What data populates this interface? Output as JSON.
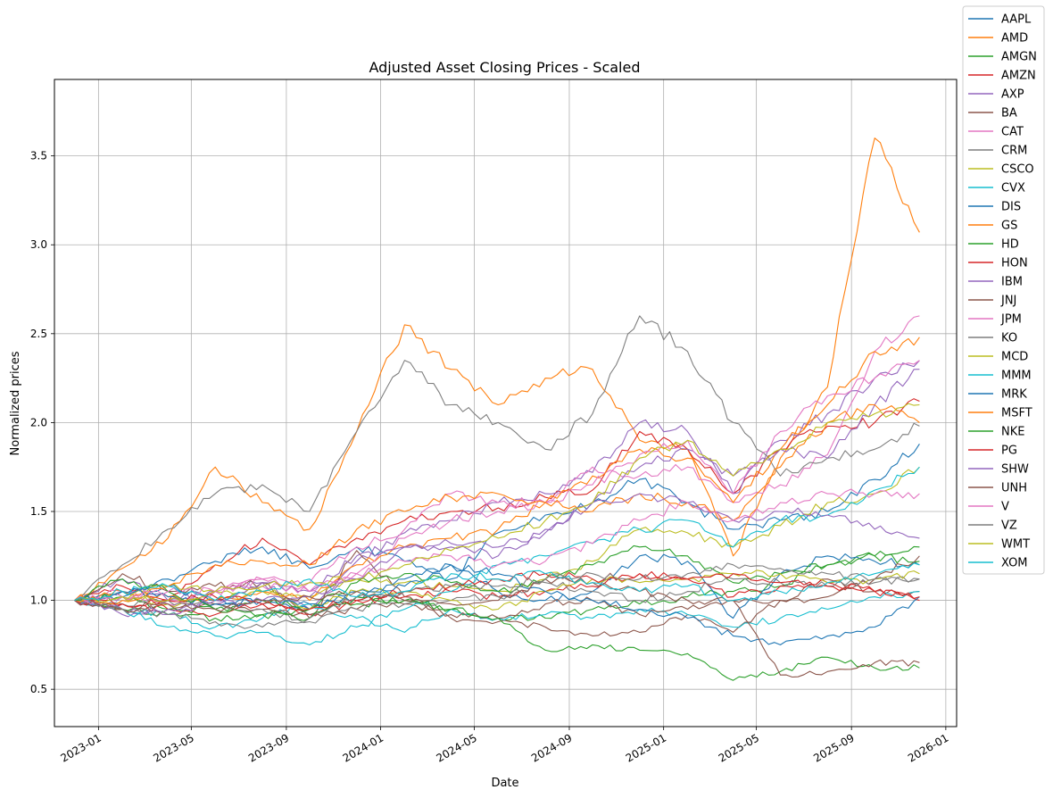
{
  "chart_data": {
    "type": "line",
    "title": "Adjusted Asset Closing Prices - Scaled",
    "xlabel": "Date",
    "ylabel": "Normalized prices",
    "grid": true,
    "legend_position": "outside-top-right",
    "xlim": [
      "2022-11-05",
      "2026-01-15"
    ],
    "ylim": [
      0.29,
      3.93
    ],
    "x_ticks": [
      "2023-01",
      "2023-05",
      "2023-09",
      "2024-01",
      "2024-05",
      "2024-09",
      "2025-01",
      "2025-05",
      "2025-09",
      "2026-01"
    ],
    "y_ticks": [
      0.5,
      1.0,
      1.5,
      2.0,
      2.5,
      3.0,
      3.5
    ],
    "y_tick_labels": [
      "0.5",
      "1.0",
      "1.5",
      "2.0",
      "2.5",
      "3.0",
      "3.5"
    ],
    "x": [
      "2022-12-01",
      "2023-02-01",
      "2023-04-01",
      "2023-06-01",
      "2023-08-01",
      "2023-10-01",
      "2023-12-01",
      "2024-02-01",
      "2024-04-01",
      "2024-06-01",
      "2024-08-01",
      "2024-10-01",
      "2024-12-01",
      "2025-02-01",
      "2025-04-01",
      "2025-06-01",
      "2025-08-01",
      "2025-10-01",
      "2025-11-28"
    ],
    "series": [
      {
        "name": "AAPL",
        "color": "#1f77b4",
        "values": [
          1.0,
          1.02,
          1.12,
          1.22,
          1.3,
          1.18,
          1.3,
          1.22,
          1.12,
          1.38,
          1.48,
          1.55,
          1.68,
          1.55,
          1.4,
          1.45,
          1.5,
          1.68,
          1.88
        ]
      },
      {
        "name": "AMD",
        "color": "#ff7f0e",
        "values": [
          1.0,
          1.18,
          1.35,
          1.75,
          1.55,
          1.4,
          1.95,
          2.55,
          2.3,
          2.1,
          2.25,
          2.3,
          1.9,
          1.85,
          1.25,
          1.8,
          2.2,
          3.6,
          3.07
        ]
      },
      {
        "name": "AMGN",
        "color": "#2ca02c",
        "values": [
          1.0,
          0.95,
          0.92,
          0.9,
          0.92,
          0.95,
          0.98,
          1.0,
          0.95,
          0.9,
          0.9,
          0.95,
          0.98,
          1.02,
          1.05,
          1.08,
          1.2,
          1.25,
          1.3
        ]
      },
      {
        "name": "AMZN",
        "color": "#d62728",
        "values": [
          1.0,
          1.08,
          1.0,
          1.2,
          1.35,
          1.2,
          1.35,
          1.45,
          1.5,
          1.52,
          1.58,
          1.62,
          1.95,
          1.85,
          1.6,
          1.85,
          1.98,
          2.0,
          2.12
        ]
      },
      {
        "name": "AXP",
        "color": "#9467bd",
        "values": [
          1.0,
          1.12,
          1.0,
          1.05,
          1.1,
          0.95,
          1.22,
          1.38,
          1.45,
          1.55,
          1.6,
          1.72,
          2.0,
          1.95,
          1.6,
          1.9,
          2.05,
          2.25,
          2.35
        ]
      },
      {
        "name": "BA",
        "color": "#8c564b",
        "values": [
          1.0,
          1.15,
          1.05,
          1.08,
          1.1,
          0.9,
          1.28,
          1.02,
          0.9,
          0.88,
          0.85,
          0.8,
          0.82,
          0.92,
          0.82,
          1.0,
          1.12,
          1.05,
          1.05
        ]
      },
      {
        "name": "CAT",
        "color": "#e377c2",
        "values": [
          1.0,
          1.05,
          1.0,
          1.05,
          1.12,
          1.1,
          1.3,
          1.4,
          1.6,
          1.55,
          1.55,
          1.75,
          1.7,
          1.75,
          1.55,
          1.65,
          1.82,
          2.4,
          2.6
        ]
      },
      {
        "name": "CRM",
        "color": "#7f7f7f",
        "values": [
          1.0,
          1.2,
          1.4,
          1.6,
          1.65,
          1.5,
          1.95,
          2.35,
          2.1,
          2.0,
          1.85,
          2.05,
          2.6,
          2.4,
          2.0,
          1.7,
          1.8,
          1.85,
          1.98
        ]
      },
      {
        "name": "CSCO",
        "color": "#bcbd22",
        "values": [
          1.0,
          1.02,
          0.98,
          1.0,
          1.05,
          1.02,
          1.12,
          1.1,
          1.08,
          1.05,
          1.12,
          1.22,
          1.4,
          1.38,
          1.3,
          1.42,
          1.55,
          1.6,
          1.75
        ]
      },
      {
        "name": "CVX",
        "color": "#17becf",
        "values": [
          1.0,
          0.95,
          0.92,
          0.85,
          0.9,
          0.98,
          0.9,
          0.82,
          0.95,
          0.9,
          0.92,
          0.9,
          0.95,
          0.92,
          0.85,
          0.9,
          0.95,
          1.02,
          1.05
        ]
      },
      {
        "name": "DIS",
        "color": "#1f77b4",
        "values": [
          1.0,
          1.05,
          1.08,
          1.0,
          0.98,
          0.95,
          1.05,
          1.08,
          1.2,
          1.05,
          1.0,
          1.05,
          1.25,
          1.22,
          0.9,
          1.15,
          1.25,
          1.22,
          1.2
        ]
      },
      {
        "name": "GS",
        "color": "#ff7f0e",
        "values": [
          1.0,
          1.05,
          1.02,
          1.0,
          1.05,
          1.0,
          1.2,
          1.3,
          1.35,
          1.4,
          1.55,
          1.7,
          1.85,
          1.8,
          1.55,
          1.85,
          2.1,
          2.4,
          2.48
        ]
      },
      {
        "name": "HD",
        "color": "#2ca02c",
        "values": [
          1.0,
          1.02,
          0.95,
          0.95,
          1.0,
          0.95,
          1.1,
          1.15,
          1.1,
          1.05,
          1.12,
          1.2,
          1.3,
          1.25,
          1.1,
          1.15,
          1.2,
          1.25,
          1.22
        ]
      },
      {
        "name": "HON",
        "color": "#d62728",
        "values": [
          1.0,
          0.98,
          0.95,
          0.92,
          0.98,
          0.92,
          1.0,
          1.02,
          1.05,
          1.02,
          1.05,
          1.08,
          1.15,
          1.12,
          1.02,
          1.08,
          1.1,
          1.05,
          1.0
        ]
      },
      {
        "name": "IBM",
        "color": "#9467bd",
        "values": [
          1.0,
          0.92,
          0.92,
          0.98,
          1.0,
          1.02,
          1.12,
          1.3,
          1.32,
          1.3,
          1.38,
          1.55,
          1.75,
          1.85,
          1.7,
          1.85,
          1.8,
          2.1,
          2.3
        ]
      },
      {
        "name": "JNJ",
        "color": "#8c564b",
        "values": [
          1.0,
          0.95,
          0.95,
          0.98,
          0.95,
          0.92,
          0.95,
          0.98,
          0.92,
          0.9,
          0.98,
          1.0,
          0.92,
          0.95,
          1.0,
          1.0,
          1.02,
          1.12,
          1.25
        ]
      },
      {
        "name": "JPM",
        "color": "#e377c2",
        "values": [
          1.0,
          1.02,
          0.98,
          1.05,
          1.12,
          1.05,
          1.15,
          1.35,
          1.45,
          1.5,
          1.55,
          1.65,
          1.82,
          1.9,
          1.6,
          1.95,
          2.15,
          2.25,
          2.35
        ]
      },
      {
        "name": "KO",
        "color": "#7f7f7f",
        "values": [
          1.0,
          0.98,
          1.0,
          0.98,
          0.95,
          0.88,
          0.95,
          0.98,
          1.0,
          1.02,
          1.1,
          1.05,
          1.0,
          1.05,
          1.12,
          1.1,
          1.08,
          1.1,
          1.12
        ]
      },
      {
        "name": "MCD",
        "color": "#bcbd22",
        "values": [
          1.0,
          1.02,
          1.08,
          1.05,
          1.05,
          0.95,
          1.05,
          1.05,
          1.0,
          0.95,
          1.05,
          1.12,
          1.1,
          1.12,
          1.15,
          1.15,
          1.1,
          1.12,
          1.15
        ]
      },
      {
        "name": "MMM",
        "color": "#17becf",
        "values": [
          1.0,
          0.95,
          0.85,
          0.8,
          0.82,
          0.75,
          0.85,
          0.95,
          1.05,
          1.2,
          1.25,
          1.32,
          1.4,
          1.45,
          1.3,
          1.45,
          1.48,
          1.62,
          1.75
        ]
      },
      {
        "name": "MRK",
        "color": "#1f77b4",
        "values": [
          1.0,
          1.05,
          1.02,
          0.98,
          1.0,
          0.98,
          1.02,
          1.12,
          1.2,
          1.15,
          1.05,
          1.0,
          0.95,
          0.9,
          0.8,
          0.75,
          0.8,
          0.85,
          1.02
        ]
      },
      {
        "name": "MSFT",
        "color": "#ff7f0e",
        "values": [
          1.0,
          1.0,
          1.08,
          1.2,
          1.22,
          1.2,
          1.4,
          1.5,
          1.58,
          1.6,
          1.55,
          1.5,
          1.6,
          1.55,
          1.45,
          1.75,
          2.0,
          2.1,
          2.0
        ]
      },
      {
        "name": "NKE",
        "color": "#2ca02c",
        "values": [
          1.0,
          1.12,
          1.05,
          0.95,
          0.92,
          0.9,
          1.02,
          1.0,
          0.95,
          0.9,
          0.72,
          0.75,
          0.72,
          0.7,
          0.55,
          0.6,
          0.68,
          0.62,
          0.62
        ]
      },
      {
        "name": "PG",
        "color": "#d62728",
        "values": [
          1.0,
          0.98,
          1.0,
          1.02,
          0.98,
          0.95,
          1.0,
          1.05,
          1.08,
          1.12,
          1.15,
          1.12,
          1.15,
          1.12,
          1.15,
          1.1,
          1.08,
          1.05,
          1.02
        ]
      },
      {
        "name": "SHW",
        "color": "#9467bd",
        "values": [
          1.0,
          0.95,
          0.95,
          1.0,
          1.1,
          1.05,
          1.25,
          1.3,
          1.3,
          1.25,
          1.4,
          1.55,
          1.6,
          1.55,
          1.45,
          1.5,
          1.48,
          1.4,
          1.35
        ]
      },
      {
        "name": "UNH",
        "color": "#8c564b",
        "values": [
          1.0,
          0.95,
          0.98,
          0.95,
          1.0,
          1.02,
          1.05,
          1.0,
          0.98,
          1.0,
          1.12,
          1.1,
          1.05,
          1.0,
          1.0,
          0.58,
          0.6,
          0.65,
          0.65
        ]
      },
      {
        "name": "V",
        "color": "#e377c2",
        "values": [
          1.0,
          1.02,
          1.05,
          1.05,
          1.08,
          1.05,
          1.15,
          1.22,
          1.25,
          1.2,
          1.22,
          1.32,
          1.45,
          1.55,
          1.45,
          1.55,
          1.6,
          1.6,
          1.6
        ]
      },
      {
        "name": "VZ",
        "color": "#7f7f7f",
        "values": [
          1.0,
          0.95,
          0.92,
          0.88,
          0.85,
          0.9,
          1.02,
          1.05,
          1.08,
          1.08,
          1.12,
          1.15,
          1.12,
          1.15,
          1.2,
          1.18,
          1.15,
          1.12,
          1.12
        ]
      },
      {
        "name": "WMT",
        "color": "#bcbd22",
        "values": [
          1.0,
          1.02,
          1.0,
          1.05,
          1.08,
          1.1,
          1.12,
          1.2,
          1.28,
          1.35,
          1.45,
          1.55,
          1.8,
          1.9,
          1.7,
          1.85,
          2.0,
          2.05,
          2.1
        ]
      },
      {
        "name": "XOM",
        "color": "#17becf",
        "values": [
          1.0,
          1.05,
          1.08,
          1.0,
          1.05,
          1.12,
          1.02,
          1.05,
          1.15,
          1.12,
          1.15,
          1.1,
          1.05,
          1.08,
          1.0,
          1.05,
          1.1,
          1.15,
          1.2
        ]
      }
    ]
  }
}
